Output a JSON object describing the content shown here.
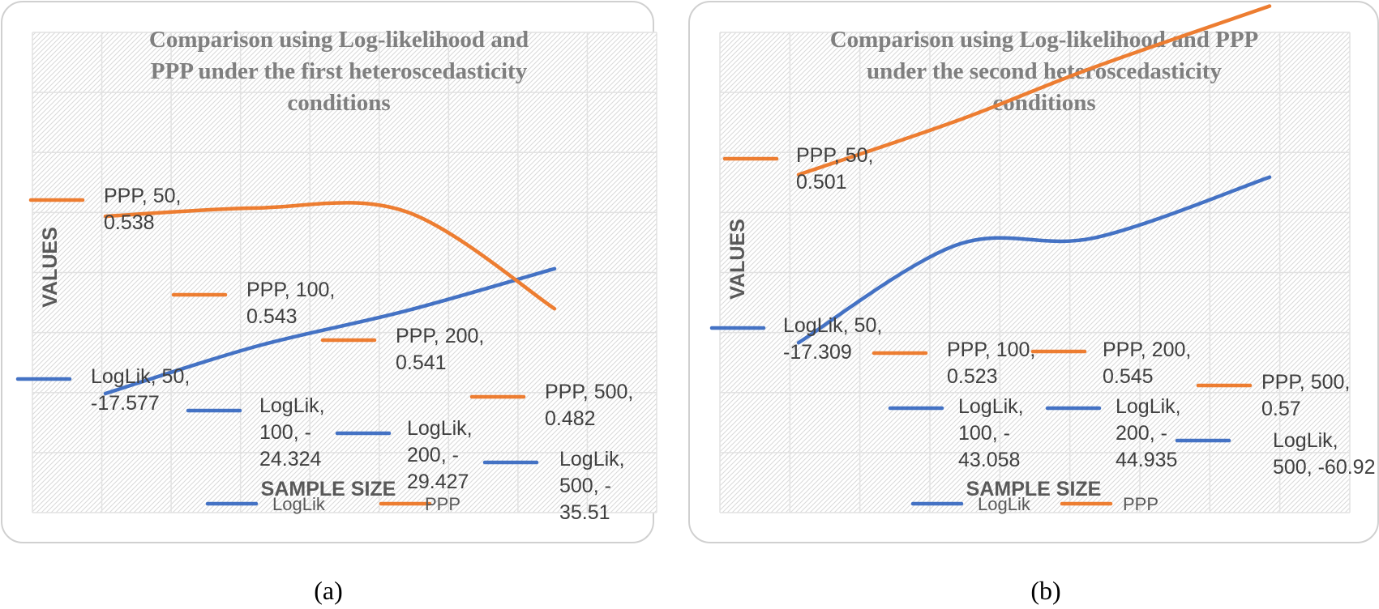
{
  "colors": {
    "LogLik": "#4472c4",
    "PPP": "#ed7d31",
    "frame": "#d0d0d0",
    "hatch": "#d9d9d9"
  },
  "chart_data": [
    {
      "type": "line",
      "title": "Comparison using Log-likelihood and PPP under the first heteroscedasticity conditions",
      "title_lines": [
        "Comparison using Log-likelihood and",
        "PPP under the first heteroscedasticity",
        "conditions"
      ],
      "xlabel": "SAMPLE SIZE",
      "ylabel": "VALUES",
      "caption": "(a)",
      "categories": [
        "50",
        "100",
        "200",
        "500"
      ],
      "grid": true,
      "legend_position": "bottom",
      "series": [
        {
          "name": "LogLik",
          "values": [
            -17.577,
            -24.324,
            -29.427,
            -35.51
          ],
          "labels": [
            [
              "LogLik, 50,",
              "-17.577"
            ],
            [
              "LogLik,",
              "100, -",
              "24.324"
            ],
            [
              "LogLik,",
              "200, -",
              "29.427"
            ],
            [
              "LogLik,",
              "500, -",
              "35.51"
            ]
          ]
        },
        {
          "name": "PPP",
          "values": [
            0.538,
            0.543,
            0.541,
            0.482
          ],
          "labels": [
            [
              "PPP, 50,",
              "0.538"
            ],
            [
              "PPP, 100,",
              "0.543"
            ],
            [
              "PPP, 200,",
              "0.541"
            ],
            [
              "PPP, 500,",
              "0.482"
            ]
          ]
        }
      ]
    },
    {
      "type": "line",
      "title": "Comparison using Log-likelihood and PPP under the second heteroscedasticity conditions",
      "title_lines": [
        "Comparison using Log-likelihood and PPP",
        "under the second heteroscedasticity",
        "conditions"
      ],
      "xlabel": "SAMPLE SIZE",
      "ylabel": "VALUES",
      "caption": "(b)",
      "categories": [
        "50",
        "100",
        "200",
        "500"
      ],
      "grid": true,
      "legend_position": "bottom",
      "series": [
        {
          "name": "LogLik",
          "values": [
            -17.309,
            -43.058,
            -44.935,
            -60.92
          ],
          "labels": [
            [
              "LogLik, 50,",
              "-17.309"
            ],
            [
              "LogLik,",
              "100, -",
              "43.058"
            ],
            [
              "LogLik,",
              "200, -",
              "44.935"
            ],
            [
              "LogLik,",
              "500, -60.92"
            ]
          ]
        },
        {
          "name": "PPP",
          "values": [
            0.501,
            0.523,
            0.545,
            0.57
          ],
          "labels": [
            [
              "PPP, 50,",
              "0.501"
            ],
            [
              "PPP, 100,",
              "0.523"
            ],
            [
              "PPP, 200,",
              "0.545"
            ],
            [
              "PPP, 500,",
              "0.57"
            ]
          ]
        }
      ]
    }
  ]
}
